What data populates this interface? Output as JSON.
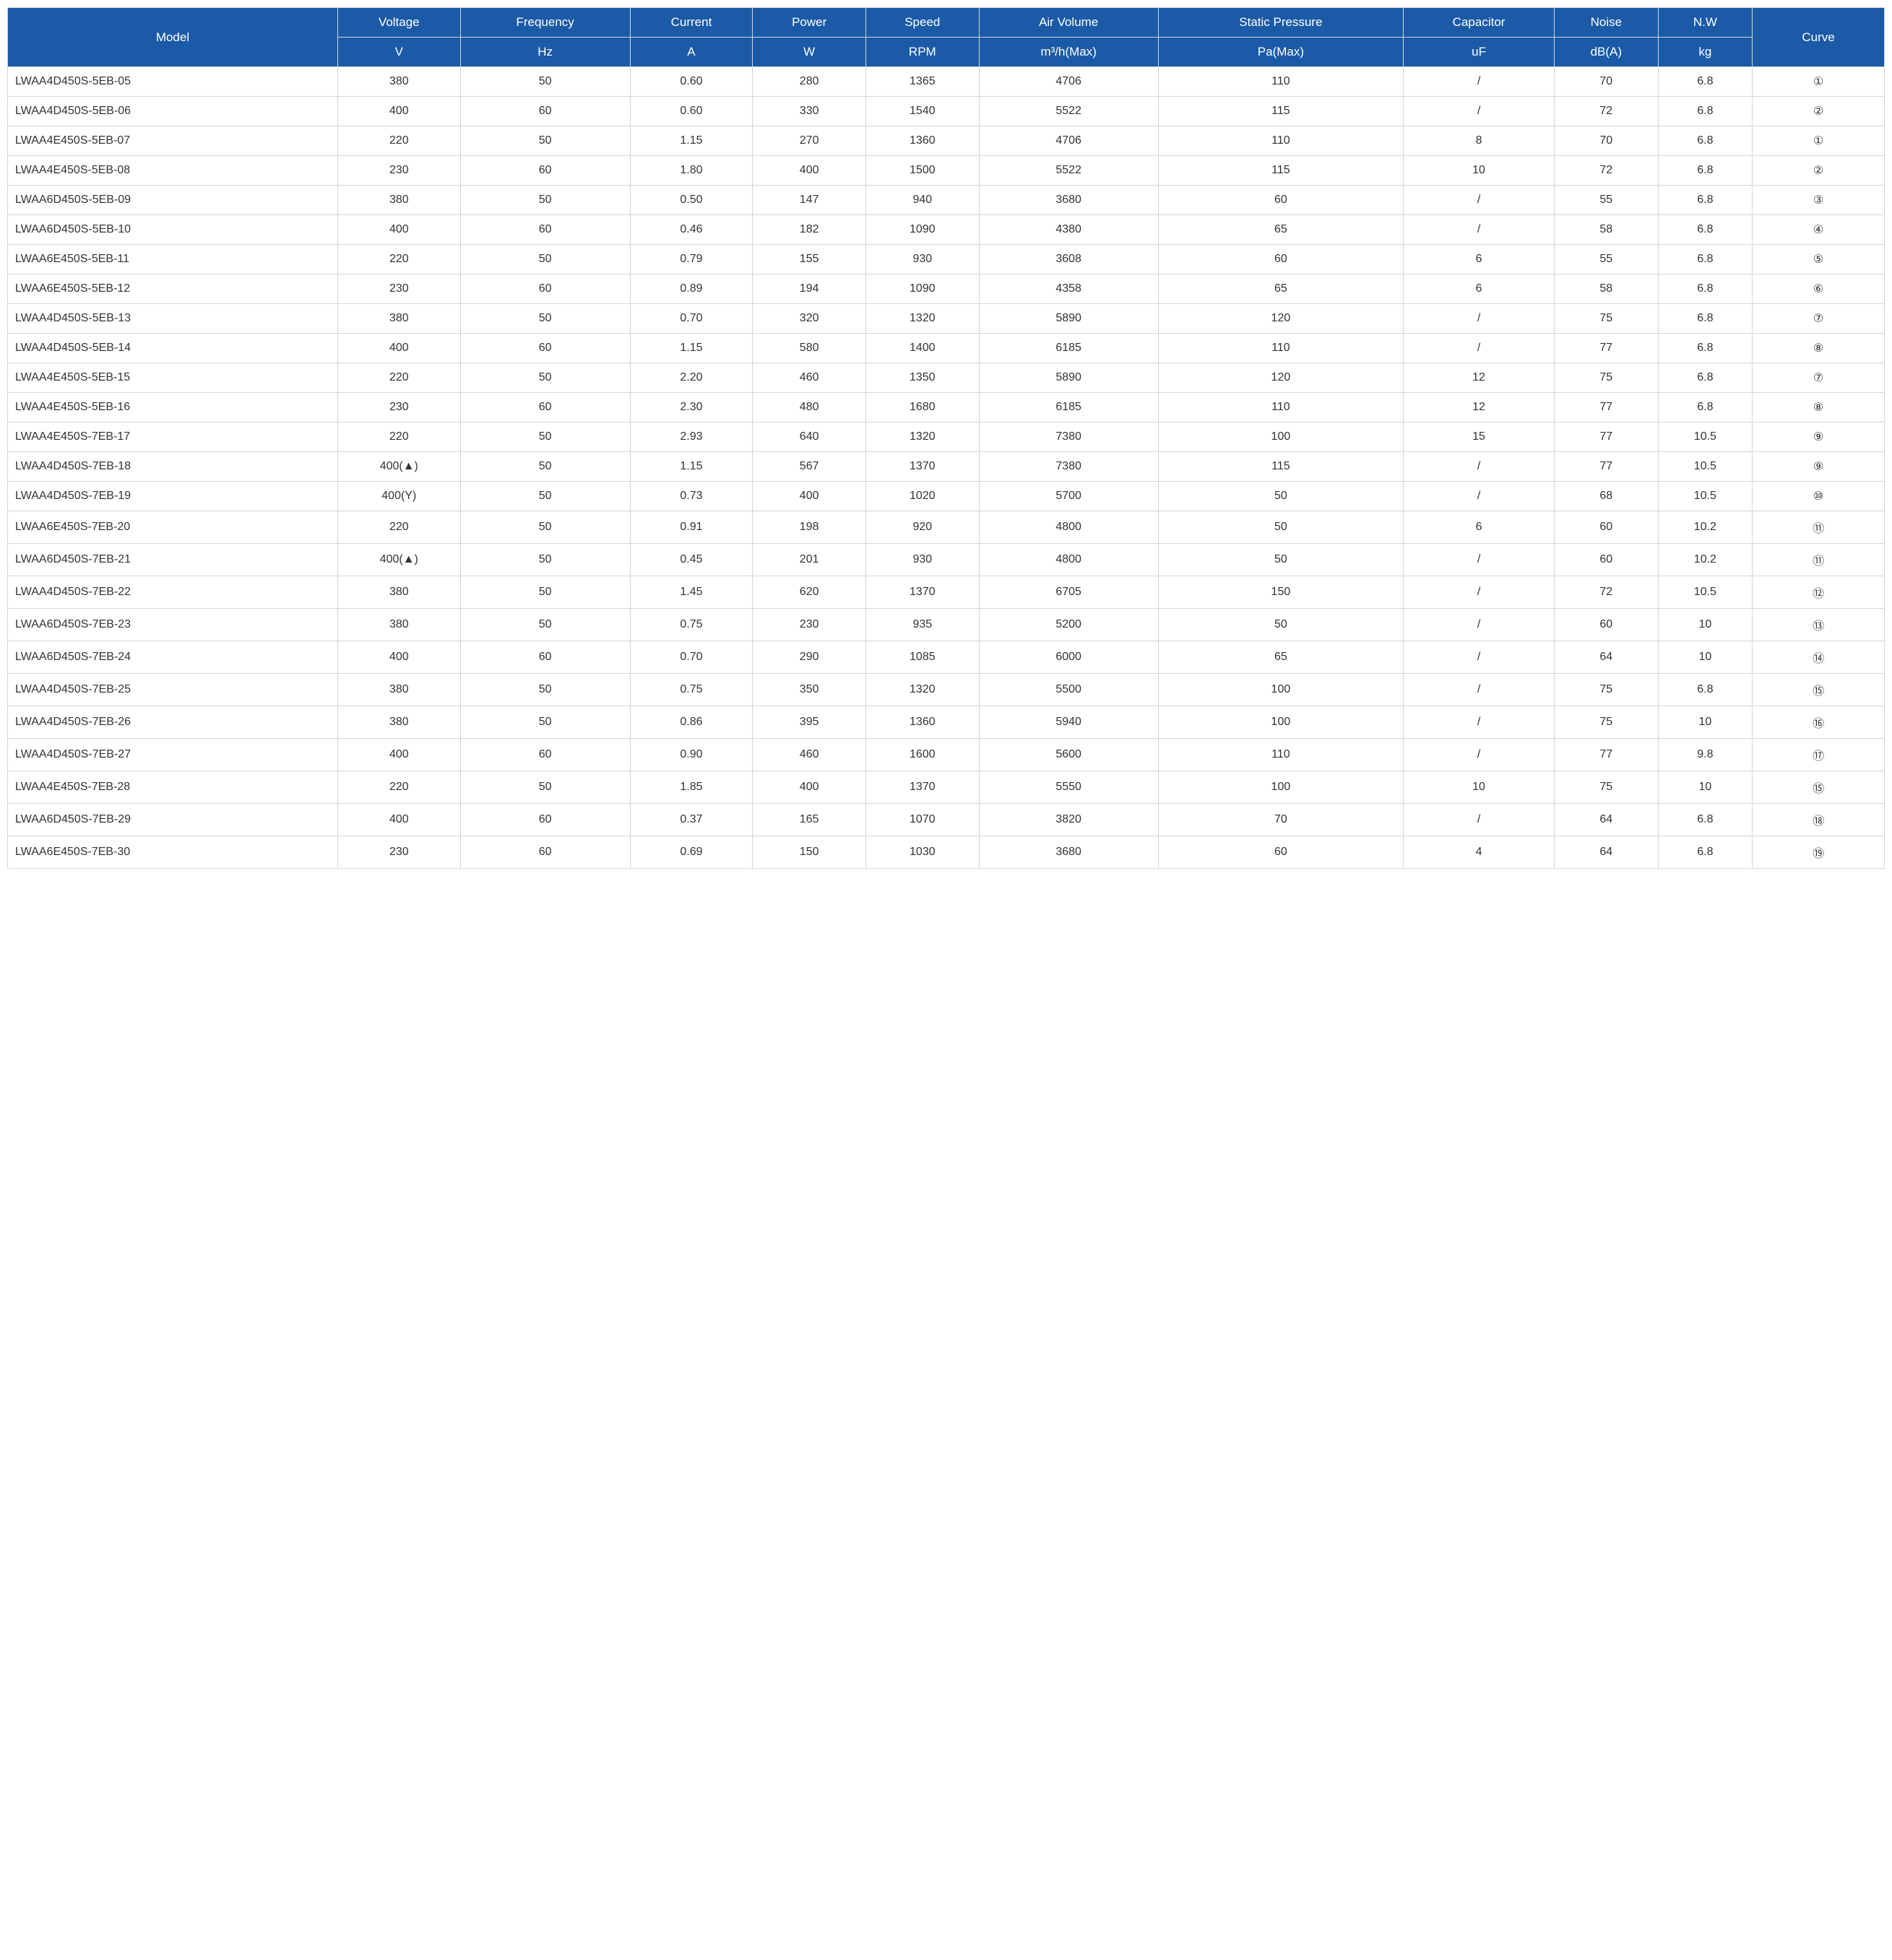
{
  "table": {
    "header_bg": "#1b5aa6",
    "header_fg": "#ffffff",
    "border_color": "#d0d7de",
    "text_color": "#333333",
    "font_family": "Arial",
    "header_fontsize": 17,
    "cell_fontsize": 16,
    "columns": [
      {
        "key": "model",
        "label": "Model",
        "unit": "",
        "width_pct": 17.5,
        "align": "left"
      },
      {
        "key": "voltage",
        "label": "Voltage",
        "unit": "V",
        "width_pct": 6.5,
        "align": "center"
      },
      {
        "key": "freq",
        "label": "Frequency",
        "unit": "Hz",
        "width_pct": 9,
        "align": "center"
      },
      {
        "key": "current",
        "label": "Current",
        "unit": "A",
        "width_pct": 6.5,
        "align": "center"
      },
      {
        "key": "power",
        "label": "Power",
        "unit": "W",
        "width_pct": 6,
        "align": "center"
      },
      {
        "key": "speed",
        "label": "Speed",
        "unit": "RPM",
        "width_pct": 6,
        "align": "center"
      },
      {
        "key": "airvol",
        "label": "Air Volume",
        "unit": "m³/h(Max)",
        "width_pct": 9.5,
        "align": "center"
      },
      {
        "key": "static",
        "label": "Static Pressure",
        "unit": "Pa(Max)",
        "width_pct": 13,
        "align": "center"
      },
      {
        "key": "cap",
        "label": "Capacitor",
        "unit": "uF",
        "width_pct": 8,
        "align": "center"
      },
      {
        "key": "noise",
        "label": "Noise",
        "unit": "dB(A)",
        "width_pct": 5.5,
        "align": "center"
      },
      {
        "key": "nw",
        "label": "N.W",
        "unit": "kg",
        "width_pct": 5,
        "align": "center"
      },
      {
        "key": "curve",
        "label": "Curve",
        "unit": "",
        "width_pct": 7,
        "align": "center"
      }
    ],
    "rows": [
      [
        "LWAA4D450S-5EB-05",
        "380",
        "50",
        "0.60",
        "280",
        "1365",
        "4706",
        "110",
        "/",
        "70",
        "6.8",
        "①"
      ],
      [
        "LWAA4D450S-5EB-06",
        "400",
        "60",
        "0.60",
        "330",
        "1540",
        "5522",
        "115",
        "/",
        "72",
        "6.8",
        "②"
      ],
      [
        "LWAA4E450S-5EB-07",
        "220",
        "50",
        "1.15",
        "270",
        "1360",
        "4706",
        "110",
        "8",
        "70",
        "6.8",
        "①"
      ],
      [
        "LWAA4E450S-5EB-08",
        "230",
        "60",
        "1.80",
        "400",
        "1500",
        "5522",
        "115",
        "10",
        "72",
        "6.8",
        "②"
      ],
      [
        "LWAA6D450S-5EB-09",
        "380",
        "50",
        "0.50",
        "147",
        "940",
        "3680",
        "60",
        "/",
        "55",
        "6.8",
        "③"
      ],
      [
        "LWAA6D450S-5EB-10",
        "400",
        "60",
        "0.46",
        "182",
        "1090",
        "4380",
        "65",
        "/",
        "58",
        "6.8",
        "④"
      ],
      [
        "LWAA6E450S-5EB-11",
        "220",
        "50",
        "0.79",
        "155",
        "930",
        "3608",
        "60",
        "6",
        "55",
        "6.8",
        "⑤"
      ],
      [
        "LWAA6E450S-5EB-12",
        "230",
        "60",
        "0.89",
        "194",
        "1090",
        "4358",
        "65",
        "6",
        "58",
        "6.8",
        "⑥"
      ],
      [
        "LWAA4D450S-5EB-13",
        "380",
        "50",
        "0.70",
        "320",
        "1320",
        "5890",
        "120",
        "/",
        "75",
        "6.8",
        "⑦"
      ],
      [
        "LWAA4D450S-5EB-14",
        "400",
        "60",
        "1.15",
        "580",
        "1400",
        "6185",
        "110",
        "/",
        "77",
        "6.8",
        "⑧"
      ],
      [
        "LWAA4E450S-5EB-15",
        "220",
        "50",
        "2.20",
        "460",
        "1350",
        "5890",
        "120",
        "12",
        "75",
        "6.8",
        "⑦"
      ],
      [
        "LWAA4E450S-5EB-16",
        "230",
        "60",
        "2.30",
        "480",
        "1680",
        "6185",
        "110",
        "12",
        "77",
        "6.8",
        "⑧"
      ],
      [
        "LWAA4E450S-7EB-17",
        "220",
        "50",
        "2.93",
        "640",
        "1320",
        "7380",
        "100",
        "15",
        "77",
        "10.5",
        "⑨"
      ],
      [
        "LWAA4D450S-7EB-18",
        "400(▲)",
        "50",
        "1.15",
        "567",
        "1370",
        "7380",
        "115",
        "/",
        "77",
        "10.5",
        "⑨"
      ],
      [
        "LWAA4D450S-7EB-19",
        "400(Y)",
        "50",
        "0.73",
        "400",
        "1020",
        "5700",
        "50",
        "/",
        "68",
        "10.5",
        "⑩"
      ],
      [
        "LWAA6E450S-7EB-20",
        "220",
        "50",
        "0.91",
        "198",
        "920",
        "4800",
        "50",
        "6",
        "60",
        "10.2",
        "⑪"
      ],
      [
        "LWAA6D450S-7EB-21",
        "400(▲)",
        "50",
        "0.45",
        "201",
        "930",
        "4800",
        "50",
        "/",
        "60",
        "10.2",
        "⑪"
      ],
      [
        "LWAA4D450S-7EB-22",
        "380",
        "50",
        "1.45",
        "620",
        "1370",
        "6705",
        "150",
        "/",
        "72",
        "10.5",
        "⑫"
      ],
      [
        "LWAA6D450S-7EB-23",
        "380",
        "50",
        "0.75",
        "230",
        "935",
        "5200",
        "50",
        "/",
        "60",
        "10",
        "⑬"
      ],
      [
        "LWAA6D450S-7EB-24",
        "400",
        "60",
        "0.70",
        "290",
        "1085",
        "6000",
        "65",
        "/",
        "64",
        "10",
        "⑭"
      ],
      [
        "LWAA4D450S-7EB-25",
        "380",
        "50",
        "0.75",
        "350",
        "1320",
        "5500",
        "100",
        "/",
        "75",
        "6.8",
        "⑮"
      ],
      [
        "LWAA4D450S-7EB-26",
        "380",
        "50",
        "0.86",
        "395",
        "1360",
        "5940",
        "100",
        "/",
        "75",
        "10",
        "⑯"
      ],
      [
        "LWAA4D450S-7EB-27",
        "400",
        "60",
        "0.90",
        "460",
        "1600",
        "5600",
        "110",
        "/",
        "77",
        "9.8",
        "⑰"
      ],
      [
        "LWAA4E450S-7EB-28",
        "220",
        "50",
        "1.85",
        "400",
        "1370",
        "5550",
        "100",
        "10",
        "75",
        "10",
        "⑮"
      ],
      [
        "LWAA6D450S-7EB-29",
        "400",
        "60",
        "0.37",
        "165",
        "1070",
        "3820",
        "70",
        "/",
        "64",
        "6.8",
        "⑱"
      ],
      [
        "LWAA6E450S-7EB-30",
        "230",
        "60",
        "0.69",
        "150",
        "1030",
        "3680",
        "60",
        "4",
        "64",
        "6.8",
        "⑲"
      ]
    ]
  }
}
